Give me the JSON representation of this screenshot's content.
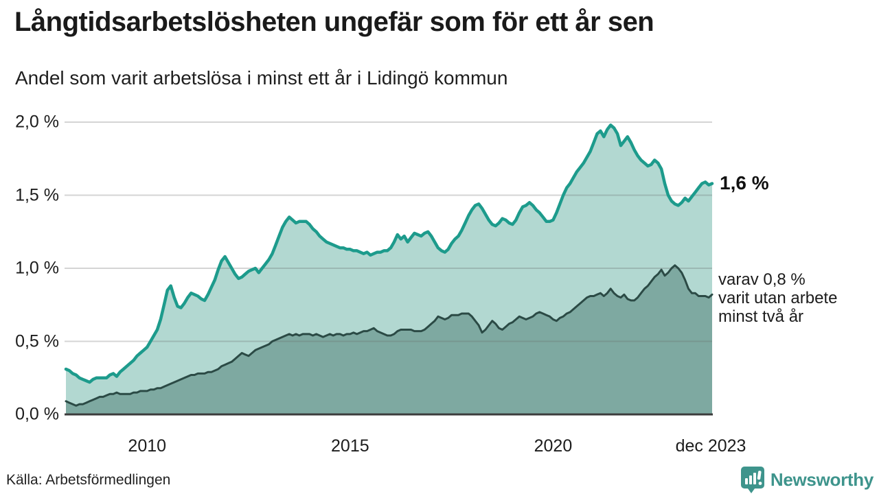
{
  "header": {
    "title": "Långtidsarbetslösheten ungefär som för ett år sen",
    "subtitle": "Andel som varit arbetslösa i minst ett år i Lidingö kommun"
  },
  "annotations": {
    "latest_total": "1,6 %",
    "secondary": "varav 0,8 %\nvarit utan arbete\nminst två år"
  },
  "footer": {
    "source": "Källa: Arbetsförmedlingen",
    "brand": "Newsworthy"
  },
  "colors": {
    "series1_fill": "#b2d8d1",
    "series1_stroke": "#1d9b8c",
    "series2_fill": "#7ea9a1",
    "series2_stroke": "#2b4a45",
    "gridline": "rgba(100,100,100,0.28)",
    "baseline": "#3c3c3c",
    "brand_teal": "#3e948c",
    "text": "#1a1a1a"
  },
  "chart_data": {
    "type": "area",
    "title": "Långtidsarbetslösheten ungefär som för ett år sen",
    "subtitle": "Andel som varit arbetslösa i minst ett år i Lidingö kommun",
    "unit": "%",
    "x_start": 2008.0,
    "x_end": 2023.9167,
    "x_step_months": 1,
    "ylim": [
      0,
      2.07
    ],
    "grid": "horizontal",
    "legend_position": "none",
    "y_ticks": [
      {
        "label": "2,0 %",
        "value": 2.0
      },
      {
        "label": "1,5 %",
        "value": 1.5
      },
      {
        "label": "1,0 %",
        "value": 1.0
      },
      {
        "label": "0,5 %",
        "value": 0.5
      },
      {
        "label": "0,0 %",
        "value": 0.0
      }
    ],
    "x_ticks": [
      {
        "label": "2010",
        "value": 2010
      },
      {
        "label": "2015",
        "value": 2015
      },
      {
        "label": "2020",
        "value": 2020
      },
      {
        "label": "dec 2023",
        "value": 2023.9167
      }
    ],
    "series": [
      {
        "name": "Andel arbetslösa minst ett år",
        "last_value_label": "1,6 %",
        "values": [
          0.31,
          0.3,
          0.28,
          0.27,
          0.25,
          0.24,
          0.23,
          0.22,
          0.24,
          0.25,
          0.25,
          0.25,
          0.25,
          0.27,
          0.28,
          0.26,
          0.29,
          0.31,
          0.33,
          0.35,
          0.37,
          0.4,
          0.42,
          0.44,
          0.46,
          0.5,
          0.54,
          0.58,
          0.65,
          0.75,
          0.85,
          0.88,
          0.8,
          0.74,
          0.73,
          0.76,
          0.8,
          0.83,
          0.82,
          0.81,
          0.79,
          0.78,
          0.82,
          0.87,
          0.92,
          0.99,
          1.05,
          1.08,
          1.04,
          1.0,
          0.96,
          0.93,
          0.94,
          0.96,
          0.98,
          0.99,
          1.0,
          0.97,
          1.0,
          1.03,
          1.06,
          1.1,
          1.16,
          1.22,
          1.28,
          1.32,
          1.35,
          1.33,
          1.31,
          1.32,
          1.32,
          1.32,
          1.3,
          1.27,
          1.25,
          1.22,
          1.2,
          1.18,
          1.17,
          1.16,
          1.15,
          1.14,
          1.14,
          1.13,
          1.13,
          1.12,
          1.12,
          1.11,
          1.1,
          1.11,
          1.09,
          1.1,
          1.11,
          1.11,
          1.12,
          1.12,
          1.14,
          1.18,
          1.23,
          1.2,
          1.22,
          1.18,
          1.21,
          1.24,
          1.23,
          1.22,
          1.24,
          1.25,
          1.22,
          1.18,
          1.14,
          1.12,
          1.11,
          1.13,
          1.17,
          1.2,
          1.22,
          1.26,
          1.31,
          1.36,
          1.4,
          1.43,
          1.44,
          1.41,
          1.37,
          1.33,
          1.3,
          1.29,
          1.31,
          1.34,
          1.33,
          1.31,
          1.3,
          1.33,
          1.38,
          1.42,
          1.43,
          1.45,
          1.43,
          1.4,
          1.38,
          1.35,
          1.32,
          1.32,
          1.33,
          1.38,
          1.44,
          1.5,
          1.55,
          1.58,
          1.62,
          1.66,
          1.69,
          1.72,
          1.76,
          1.8,
          1.86,
          1.92,
          1.94,
          1.9,
          1.95,
          1.98,
          1.96,
          1.92,
          1.84,
          1.87,
          1.9,
          1.86,
          1.81,
          1.77,
          1.74,
          1.72,
          1.7,
          1.71,
          1.74,
          1.72,
          1.68,
          1.58,
          1.5,
          1.46,
          1.44,
          1.43,
          1.45,
          1.48,
          1.46,
          1.49,
          1.52,
          1.55,
          1.58,
          1.59,
          1.57,
          1.58
        ]
      },
      {
        "name": "varav arbetslösa minst två år",
        "last_value_label": "0,8 %",
        "values": [
          0.09,
          0.08,
          0.07,
          0.06,
          0.07,
          0.07,
          0.08,
          0.09,
          0.1,
          0.11,
          0.12,
          0.12,
          0.13,
          0.14,
          0.14,
          0.15,
          0.14,
          0.14,
          0.14,
          0.14,
          0.15,
          0.15,
          0.16,
          0.16,
          0.16,
          0.17,
          0.17,
          0.18,
          0.18,
          0.19,
          0.2,
          0.21,
          0.22,
          0.23,
          0.24,
          0.25,
          0.26,
          0.27,
          0.27,
          0.28,
          0.28,
          0.28,
          0.29,
          0.29,
          0.3,
          0.31,
          0.33,
          0.34,
          0.35,
          0.36,
          0.38,
          0.4,
          0.42,
          0.41,
          0.4,
          0.42,
          0.44,
          0.45,
          0.46,
          0.47,
          0.48,
          0.5,
          0.51,
          0.52,
          0.53,
          0.54,
          0.55,
          0.54,
          0.55,
          0.54,
          0.55,
          0.55,
          0.55,
          0.54,
          0.55,
          0.54,
          0.53,
          0.54,
          0.55,
          0.54,
          0.55,
          0.55,
          0.54,
          0.55,
          0.55,
          0.56,
          0.55,
          0.56,
          0.57,
          0.57,
          0.58,
          0.59,
          0.57,
          0.56,
          0.55,
          0.54,
          0.54,
          0.55,
          0.57,
          0.58,
          0.58,
          0.58,
          0.58,
          0.57,
          0.57,
          0.57,
          0.58,
          0.6,
          0.62,
          0.64,
          0.67,
          0.66,
          0.65,
          0.66,
          0.68,
          0.68,
          0.68,
          0.69,
          0.69,
          0.69,
          0.67,
          0.64,
          0.61,
          0.56,
          0.58,
          0.61,
          0.64,
          0.62,
          0.59,
          0.58,
          0.6,
          0.62,
          0.63,
          0.65,
          0.67,
          0.66,
          0.65,
          0.66,
          0.67,
          0.69,
          0.7,
          0.69,
          0.68,
          0.67,
          0.65,
          0.64,
          0.66,
          0.67,
          0.69,
          0.7,
          0.72,
          0.74,
          0.76,
          0.78,
          0.8,
          0.81,
          0.81,
          0.82,
          0.83,
          0.81,
          0.83,
          0.86,
          0.83,
          0.81,
          0.8,
          0.82,
          0.79,
          0.78,
          0.78,
          0.8,
          0.83,
          0.86,
          0.88,
          0.91,
          0.94,
          0.96,
          0.99,
          0.95,
          0.97,
          1.0,
          1.02,
          1.0,
          0.97,
          0.92,
          0.86,
          0.83,
          0.83,
          0.81,
          0.81,
          0.81,
          0.8,
          0.82
        ]
      }
    ]
  }
}
